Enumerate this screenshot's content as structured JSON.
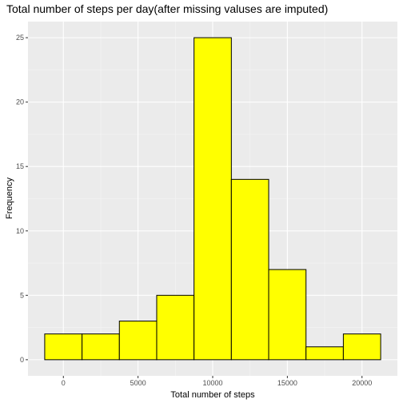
{
  "chart_data": {
    "type": "bar",
    "title": "Total number of steps per day(after missing valuses are imputed)",
    "xlabel": "Total number of steps",
    "ylabel": "Frequency",
    "xlim": [
      -2370,
      22370
    ],
    "ylim": [
      -1.25,
      26.25
    ],
    "x_ticks": [
      0,
      5000,
      10000,
      15000,
      20000
    ],
    "x_tick_labels": [
      "0",
      "5000",
      "10000",
      "15000",
      "20000"
    ],
    "y_ticks": [
      0,
      5,
      10,
      15,
      20,
      25
    ],
    "y_tick_labels": [
      "0",
      "5",
      "10",
      "15",
      "20",
      "25"
    ],
    "bins": [
      {
        "start": -1250,
        "end": 1250,
        "count": 2
      },
      {
        "start": 1250,
        "end": 3750,
        "count": 2
      },
      {
        "start": 3750,
        "end": 6250,
        "count": 3
      },
      {
        "start": 6250,
        "end": 8750,
        "count": 5
      },
      {
        "start": 8750,
        "end": 11250,
        "count": 25
      },
      {
        "start": 11250,
        "end": 13750,
        "count": 14
      },
      {
        "start": 13750,
        "end": 16250,
        "count": 7
      },
      {
        "start": 16250,
        "end": 18750,
        "count": 1
      },
      {
        "start": 18750,
        "end": 21250,
        "count": 2
      }
    ],
    "grid": true,
    "colors": {
      "bar_fill": "#FFFF00",
      "bar_stroke": "#000000",
      "panel_bg": "#EBEBEB",
      "grid_major": "#FFFFFF",
      "grid_minor": "#F5F5F5",
      "tick_text": "#4D4D4D",
      "tick_mark": "#333333"
    }
  }
}
